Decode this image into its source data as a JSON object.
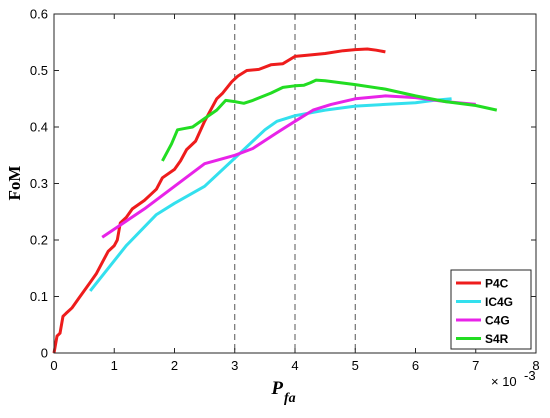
{
  "chart_data": {
    "type": "line",
    "xlabel": "P",
    "xlabel_sub": "fa",
    "ylabel": "FoM",
    "x_exponent": "× 10",
    "x_exponent_power": "-3",
    "xlim": [
      0,
      8
    ],
    "ylim": [
      0,
      0.6
    ],
    "xticks": [
      "0",
      "1",
      "2",
      "3",
      "4",
      "5",
      "6",
      "7",
      "8"
    ],
    "yticks": [
      "0",
      "0.1",
      "0.2",
      "0.3",
      "0.4",
      "0.5",
      "0.6"
    ],
    "vlines": [
      3,
      4,
      5
    ],
    "grid": false,
    "legend_position": "bottom-right",
    "series": [
      {
        "name": "P4C",
        "color": "#ee1c1c",
        "x": [
          0,
          0.05,
          0.1,
          0.15,
          0.2,
          0.3,
          0.4,
          0.5,
          0.6,
          0.7,
          0.8,
          0.9,
          1.0,
          1.05,
          1.1,
          1.2,
          1.3,
          1.5,
          1.6,
          1.7,
          1.8,
          2.0,
          2.1,
          2.2,
          2.35,
          2.5,
          2.7,
          2.8,
          2.95,
          3.05,
          3.2,
          3.4,
          3.6,
          3.8,
          4.0,
          4.2,
          4.5,
          4.8,
          5.0,
          5.2,
          5.35,
          5.5
        ],
        "y": [
          0,
          0.03,
          0.035,
          0.065,
          0.07,
          0.08,
          0.095,
          0.11,
          0.125,
          0.14,
          0.16,
          0.18,
          0.19,
          0.2,
          0.23,
          0.24,
          0.255,
          0.27,
          0.28,
          0.29,
          0.31,
          0.325,
          0.34,
          0.36,
          0.375,
          0.41,
          0.45,
          0.46,
          0.48,
          0.49,
          0.5,
          0.502,
          0.51,
          0.512,
          0.525,
          0.527,
          0.53,
          0.535,
          0.537,
          0.538,
          0.536,
          0.533
        ]
      },
      {
        "name": "IC4G",
        "color": "#33e0ee",
        "x": [
          0.6,
          1.2,
          1.7,
          2.0,
          2.5,
          3.0,
          3.5,
          3.7,
          4.0,
          4.5,
          5.0,
          5.5,
          6.0,
          6.3,
          6.6
        ],
        "y": [
          0.11,
          0.19,
          0.245,
          0.265,
          0.295,
          0.345,
          0.395,
          0.41,
          0.42,
          0.43,
          0.437,
          0.44,
          0.443,
          0.447,
          0.45
        ]
      },
      {
        "name": "C4G",
        "color": "#e823e8",
        "x": [
          0.8,
          1.5,
          2.0,
          2.5,
          3.0,
          3.3,
          3.7,
          4.0,
          4.3,
          4.6,
          5.0,
          5.5,
          6.0,
          6.5,
          7.0
        ],
        "y": [
          0.205,
          0.255,
          0.295,
          0.335,
          0.35,
          0.362,
          0.39,
          0.41,
          0.43,
          0.44,
          0.45,
          0.455,
          0.452,
          0.445,
          0.44
        ]
      },
      {
        "name": "S4R",
        "color": "#22dd22",
        "x": [
          1.8,
          1.95,
          2.05,
          2.15,
          2.3,
          2.5,
          2.7,
          2.85,
          3.0,
          3.15,
          3.3,
          3.6,
          3.8,
          4.0,
          4.15,
          4.25,
          4.35,
          4.5,
          5.0,
          5.5,
          6.0,
          6.5,
          7.0,
          7.35
        ],
        "y": [
          0.34,
          0.37,
          0.395,
          0.397,
          0.4,
          0.415,
          0.43,
          0.447,
          0.445,
          0.442,
          0.447,
          0.46,
          0.47,
          0.473,
          0.474,
          0.478,
          0.483,
          0.482,
          0.475,
          0.467,
          0.455,
          0.445,
          0.438,
          0.43
        ]
      }
    ]
  }
}
